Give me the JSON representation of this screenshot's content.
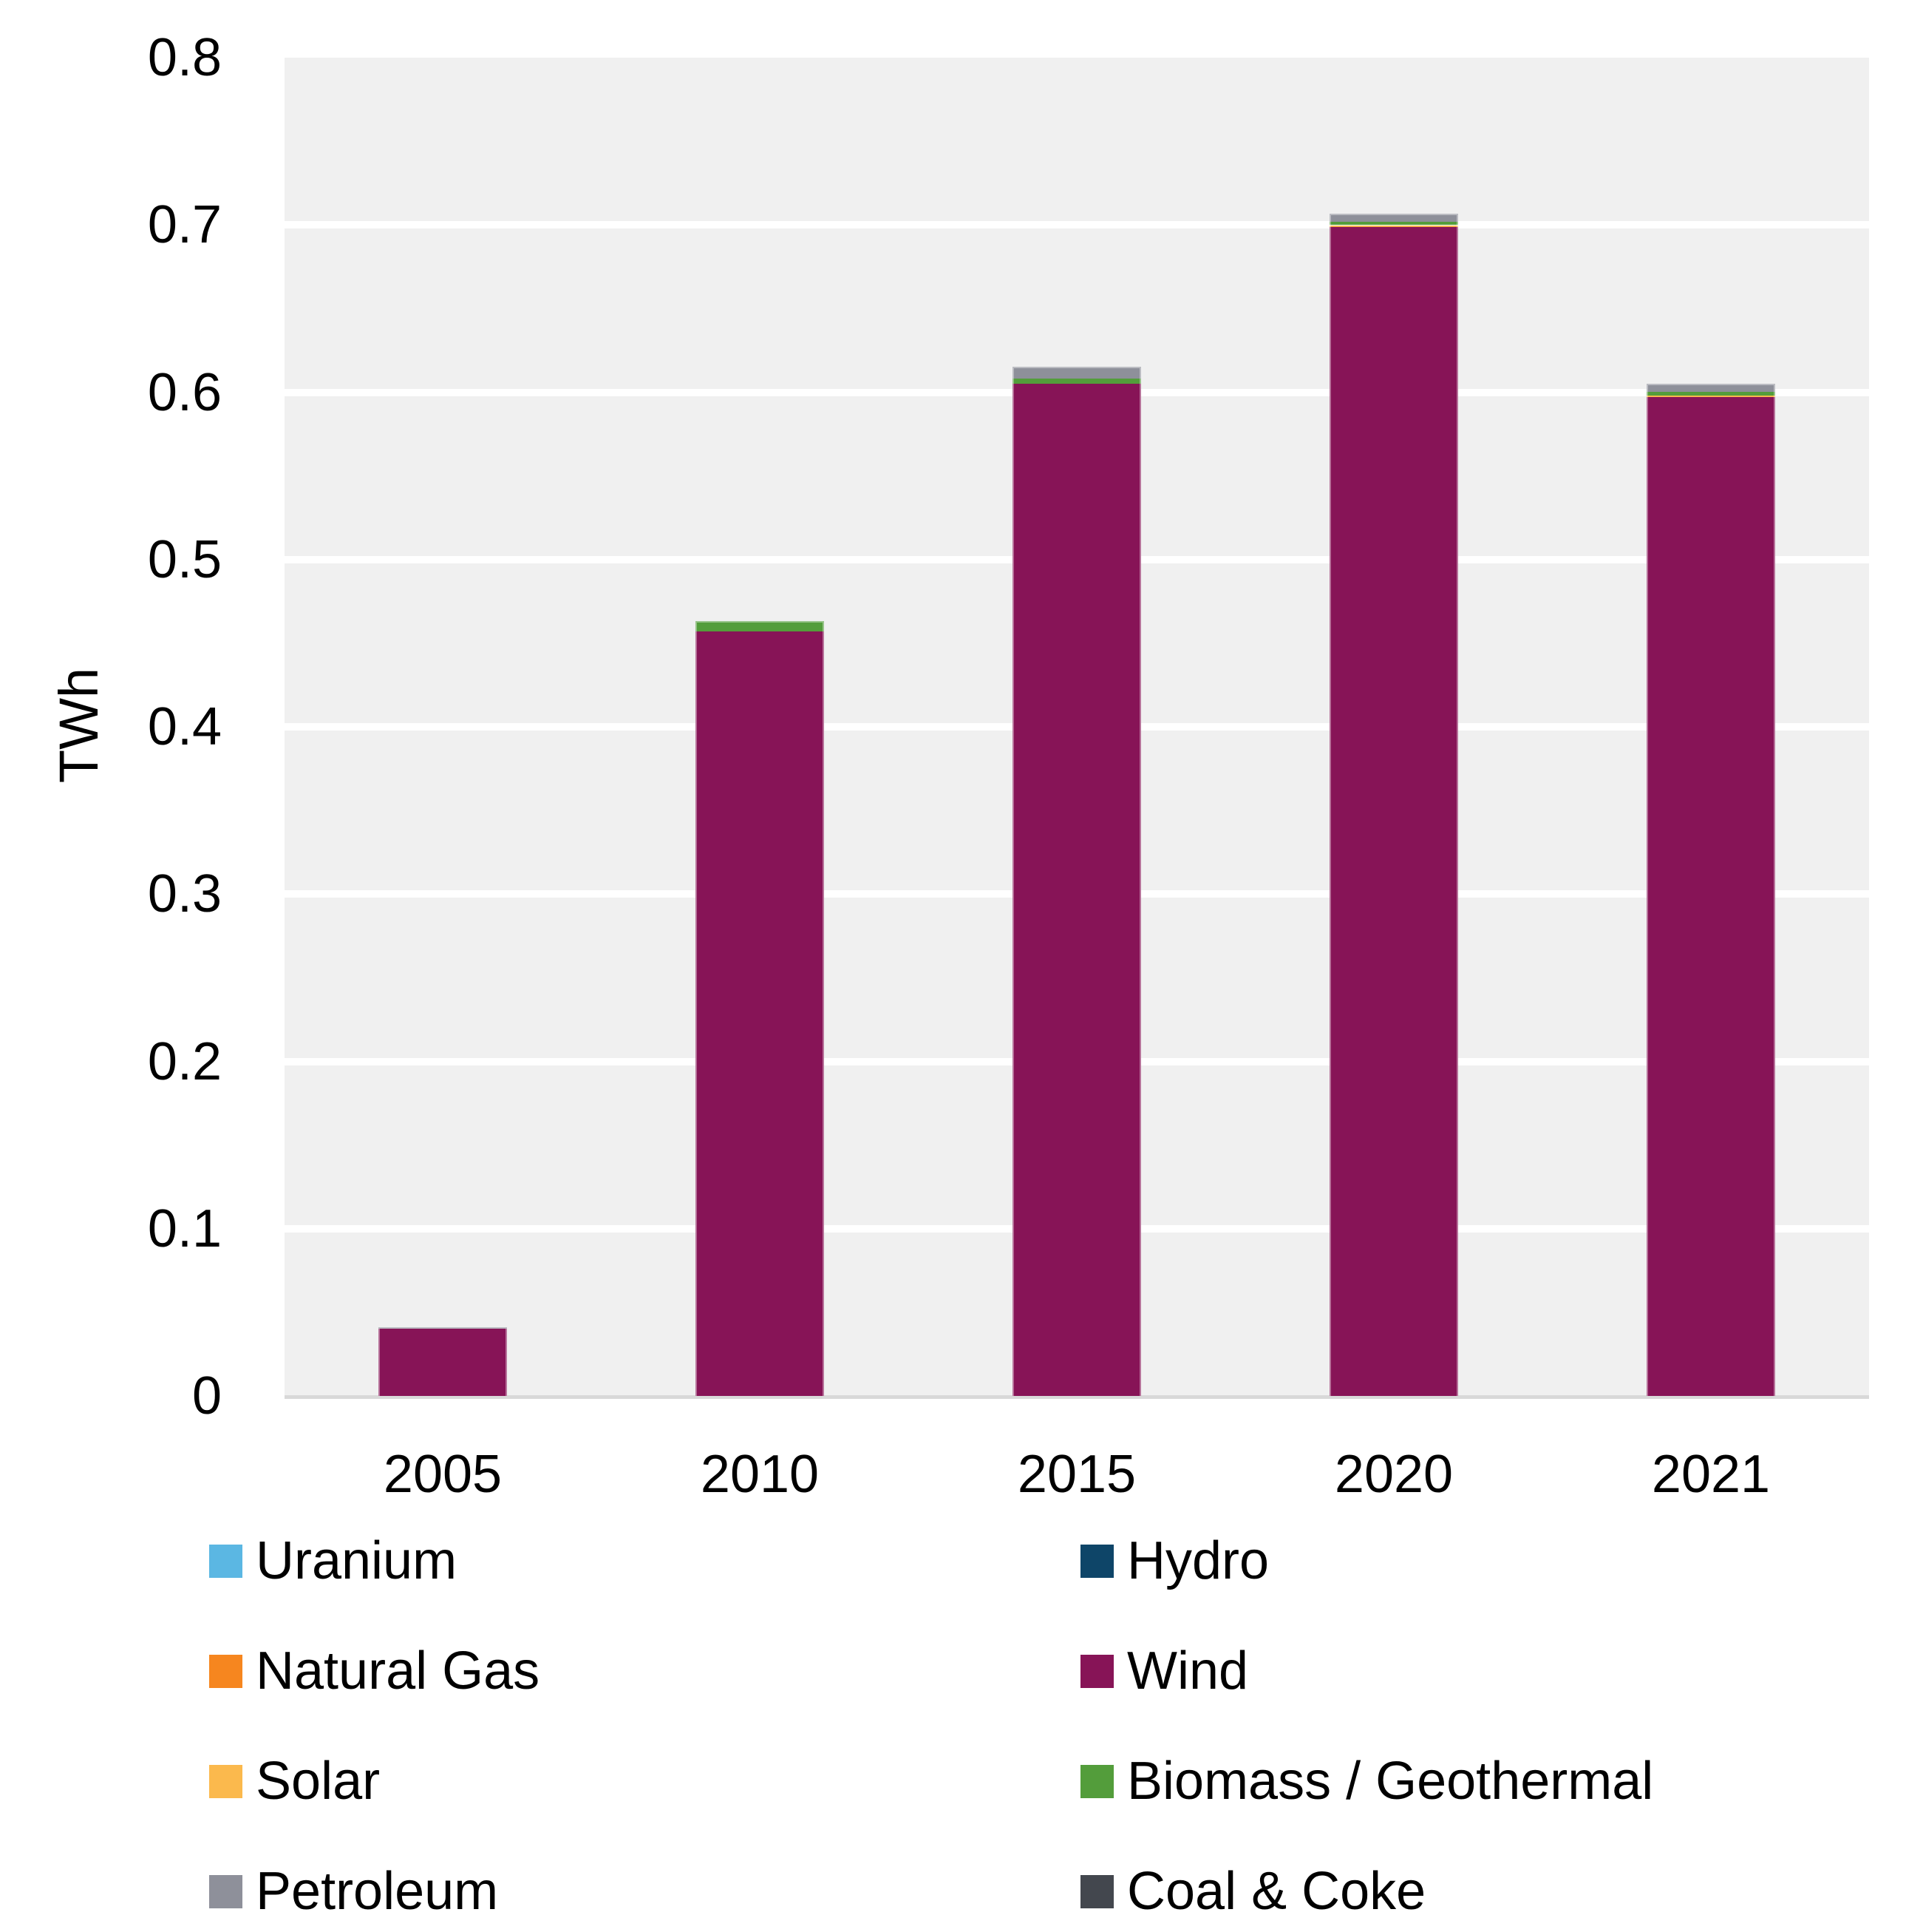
{
  "chart_data": {
    "type": "bar",
    "stacked": true,
    "title": "",
    "xlabel": "",
    "ylabel": "TWh",
    "categories": [
      "2005",
      "2010",
      "2015",
      "2020",
      "2021"
    ],
    "series": [
      {
        "name": "Uranium",
        "color": "#5BB7E3",
        "values": [
          0,
          0,
          0,
          0,
          0
        ]
      },
      {
        "name": "Hydro",
        "color": "#0E4568",
        "values": [
          0,
          0,
          0,
          0,
          0
        ]
      },
      {
        "name": "Natural Gas",
        "color": "#F6861F",
        "values": [
          0,
          0,
          0,
          0,
          0
        ]
      },
      {
        "name": "Wind",
        "color": "#871457",
        "values": [
          0.04,
          0.457,
          0.605,
          0.699,
          0.597
        ]
      },
      {
        "name": "Solar",
        "color": "#FBB94D",
        "values": [
          0,
          0,
          0,
          0.001,
          0.001
        ]
      },
      {
        "name": "Biomass / Geothermal",
        "color": "#539D3B",
        "values": [
          0,
          0.006,
          0.003,
          0.002,
          0.002
        ]
      },
      {
        "name": "Petroleum",
        "color": "#8E909A",
        "values": [
          0.001,
          0,
          0.007,
          0.005,
          0.005
        ]
      },
      {
        "name": "Coal & Coke",
        "color": "#43474E",
        "values": [
          0,
          0,
          0,
          0,
          0
        ]
      }
    ],
    "totals": [
      0.041,
      0.463,
      0.615,
      0.707,
      0.605
    ],
    "ylim": [
      0,
      0.8
    ],
    "yticks": [
      0,
      0.1,
      0.2,
      0.3,
      0.4,
      0.5,
      0.6,
      0.7,
      0.8
    ],
    "ytick_labels": [
      "0",
      "0.1",
      "0.2",
      "0.3",
      "0.4",
      "0.5",
      "0.6",
      "0.7",
      "0.8"
    ],
    "grid": true,
    "legend_position": "bottom",
    "legend_columns": [
      [
        "Uranium",
        "Natural Gas",
        "Solar",
        "Petroleum"
      ],
      [
        "Hydro",
        "Wind",
        "Biomass / Geothermal",
        "Coal & Coke"
      ]
    ]
  },
  "colors": {
    "plot_background": "#F0F0F0",
    "gridline": "#FFFFFF",
    "axis_line": "#D9D9D9",
    "text": "#000000"
  }
}
